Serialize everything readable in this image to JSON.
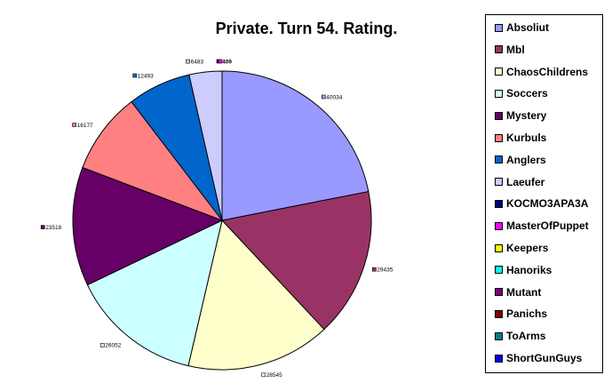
{
  "chart_data": {
    "type": "pie",
    "title": "Private. Turn 54. Rating.",
    "legend_position": "right",
    "slices": [
      {
        "name": "Absoliut",
        "value": 40034,
        "label": "40034",
        "color": "#9999ff"
      },
      {
        "name": "Mbl",
        "value": 29435,
        "label": "29435",
        "color": "#993366"
      },
      {
        "name": "ChaosChildrens",
        "value": 28545,
        "label": "28545",
        "color": "#ffffcc"
      },
      {
        "name": "Soccers",
        "value": 26052,
        "label": "26052",
        "color": "#ccffff"
      },
      {
        "name": "Mystery",
        "value": 23518,
        "label": "23518",
        "color": "#660066"
      },
      {
        "name": "Kurbuls",
        "value": 16177,
        "label": "16177",
        "color": "#ff8080"
      },
      {
        "name": "Anglers",
        "value": 12493,
        "label": "12493",
        "color": "#0066cc"
      },
      {
        "name": "Laeufer",
        "value": 6483,
        "label": "6483",
        "color": "#ccccff"
      },
      {
        "name": "KOCMO3APA3A",
        "value": 0,
        "label": "",
        "color": "#000080"
      },
      {
        "name": "MasterOfPuppet",
        "value": 0,
        "label": "",
        "color": "#ff00ff"
      },
      {
        "name": "Keepers",
        "value": 0,
        "label": "",
        "color": "#ffff00"
      },
      {
        "name": "Hanoriks",
        "value": 0,
        "label": "",
        "color": "#00ffff"
      },
      {
        "name": "Mutant",
        "value": 0,
        "label": "",
        "color": "#800080"
      },
      {
        "name": "Panichs",
        "value": 0,
        "label": "",
        "color": "#800000"
      },
      {
        "name": "ToArms",
        "value": 0,
        "label": "",
        "color": "#008080"
      },
      {
        "name": "ShortGunGuys",
        "value": 0,
        "label": "",
        "color": "#0000ff"
      }
    ],
    "overlap_label": "409"
  }
}
